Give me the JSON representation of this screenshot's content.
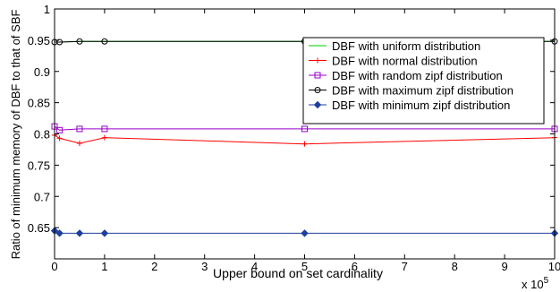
{
  "chart_data": {
    "type": "line",
    "title": "",
    "xlabel": "Upper bound on set cardinality",
    "ylabel": "Ratio of minimum memory of DBF to that of SBF",
    "x_multiplier_label": "x 10",
    "x_multiplier_exponent": "5",
    "xlim": [
      0,
      10
    ],
    "ylim": [
      0.6,
      1.0
    ],
    "x_ticks": [
      0,
      1,
      2,
      3,
      4,
      5,
      6,
      7,
      8,
      9,
      10
    ],
    "y_ticks": [
      0.65,
      0.7,
      0.75,
      0.8,
      0.85,
      0.9,
      0.95,
      1.0
    ],
    "y_tick_labels": [
      "0.65",
      "0.7",
      "0.75",
      "0.8",
      "0.85",
      "0.9",
      "0.95",
      "1"
    ],
    "grid": false,
    "legend_position": "top-right",
    "x": [
      0,
      0.1,
      0.5,
      1,
      5,
      10
    ],
    "series": [
      {
        "name": "DBF with uniform distribution",
        "color": "#00cc00",
        "marker": "none",
        "values": [
          0.947,
          0.947,
          0.948,
          0.948,
          0.948,
          0.948
        ]
      },
      {
        "name": "DBF with normal distribution",
        "color": "#ff0000",
        "marker": "plus",
        "values": [
          0.798,
          0.793,
          0.785,
          0.794,
          0.784,
          0.794
        ]
      },
      {
        "name": "DBF with random zipf distribution",
        "color": "#9900cc",
        "marker": "square",
        "values": [
          0.812,
          0.806,
          0.808,
          0.808,
          0.808,
          0.808
        ]
      },
      {
        "name": "DBF with maximum zipf distribution",
        "color": "#000000",
        "marker": "circle",
        "values": [
          0.947,
          0.947,
          0.948,
          0.948,
          0.948,
          0.948
        ]
      },
      {
        "name": "DBF with minimum zipf distribution",
        "color": "#1f3f9f",
        "marker": "diamond",
        "values": [
          0.645,
          0.641,
          0.641,
          0.641,
          0.641,
          0.641
        ]
      }
    ]
  }
}
